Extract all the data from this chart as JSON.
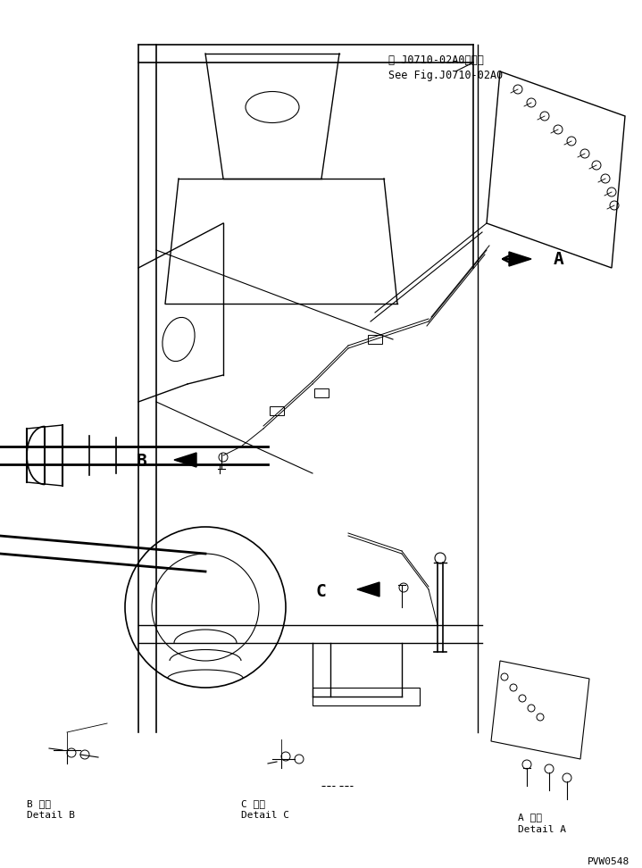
{
  "fig_width": 7.19,
  "fig_height": 9.72,
  "dpi": 100,
  "bg_color": "#ffffff",
  "line_color": "#000000",
  "title_ref1_jp": "第 J0710-02A0図参照",
  "title_ref1_en": "See Fig.J0710-02A0",
  "label_A": "A",
  "label_B": "B",
  "label_C": "C",
  "detail_A_jp": "A 詳細",
  "detail_A_en": "Detail A",
  "detail_B_jp": "B 詳細",
  "detail_B_en": "Detail B",
  "detail_C_jp": "C 詳細",
  "detail_C_en": "Detail C",
  "part_number": "PVW0548"
}
